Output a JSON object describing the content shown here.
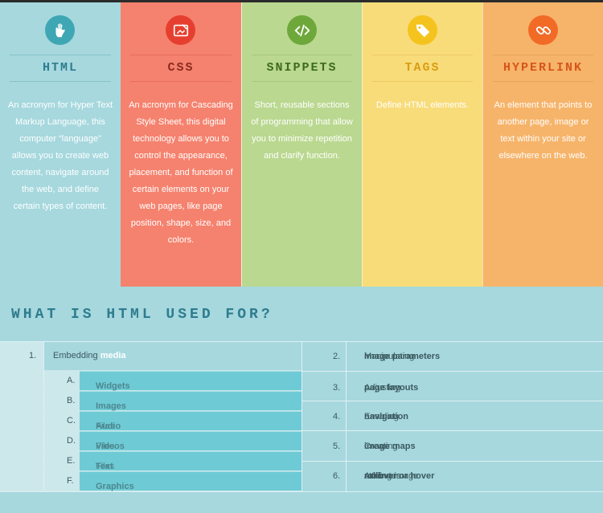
{
  "columns": [
    {
      "id": "html",
      "title": "HTML",
      "icon": "ok-hand-icon",
      "color": "#3fa7b4",
      "desc": "An acronym for Hyper Text Markup Language, this computer “language” allows you to create web content, navigate around the web, and define certain types of content."
    },
    {
      "id": "css",
      "title": "CSS",
      "icon": "paint-canvas-icon",
      "color": "#e63f2f",
      "desc": "An acronym for Cascading Style Sheet, this digital technology allows you to control the appearance, placement, and function of certain elements on your web pages, like page position, shape, size, and colors."
    },
    {
      "id": "snippets",
      "title": "SNIPPETS",
      "icon": "code-icon",
      "color": "#6ea83a",
      "desc": "Short, reusable sections of programming that allow you to minimize repetition and clarify function."
    },
    {
      "id": "tags",
      "title": "TAGS",
      "icon": "tag-icon",
      "color": "#f5c31d",
      "desc": "Define HTML elements."
    },
    {
      "id": "hyperlink",
      "title": "HYPERLINK",
      "icon": "link-icon",
      "color": "#f26b26",
      "desc": "An element that points to another page, image or text within your site or elsewhere on the web."
    }
  ],
  "heading": "WHAT IS HTML USED FOR?",
  "uses": {
    "item1": {
      "num": "1.",
      "pre": "Embedding ",
      "hl": "media"
    },
    "subitems": [
      {
        "letter": "A.",
        "hl": "Widgets",
        "post": ""
      },
      {
        "letter": "B.",
        "hl": "Images",
        "post": ""
      },
      {
        "letter": "C.",
        "hl": "Audio",
        "post": " Files"
      },
      {
        "letter": "D.",
        "hl": "Videos",
        "post": " Files"
      },
      {
        "letter": "E.",
        "hl": "Text",
        "post": " Files"
      },
      {
        "letter": "F.",
        "hl": "Graphics",
        "post": ""
      }
    ],
    "right": [
      {
        "num": "2.",
        "pre": "Manipulating ",
        "hl": "image parameters",
        "post": ""
      },
      {
        "num": "3.",
        "pre": "Adjusting ",
        "hl": "page layouts",
        "post": ""
      },
      {
        "num": "4.",
        "pre": "Enabling ",
        "hl": "navigation",
        "post": ""
      },
      {
        "num": "5.",
        "pre": "Creating ",
        "hl": "image maps",
        "post": ""
      },
      {
        "num": "6.",
        "pre": "Adding image ",
        "hl": "rollover or hover",
        "post": " attributes"
      }
    ]
  }
}
